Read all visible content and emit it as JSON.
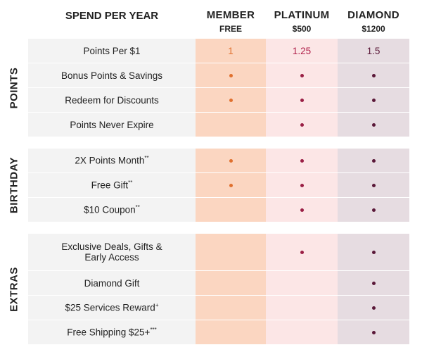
{
  "header": {
    "title": "SPEND PER YEAR",
    "tiers": [
      {
        "name": "MEMBER",
        "price": "FREE"
      },
      {
        "name": "PLATINUM",
        "price": "$500"
      },
      {
        "name": "DIAMOND",
        "price": "$1200"
      }
    ]
  },
  "sections": [
    {
      "title": "POINTS",
      "rows": [
        {
          "label": "Points Per $1",
          "cells": [
            1,
            1.25,
            1.5
          ]
        },
        {
          "label": "Bonus Points & Savings",
          "cells": [
            true,
            true,
            true
          ]
        },
        {
          "label": "Redeem for Discounts",
          "cells": [
            true,
            true,
            true
          ]
        },
        {
          "label": "Points Never Expire",
          "cells": [
            false,
            true,
            true
          ]
        }
      ]
    },
    {
      "title": "BIRTHDAY",
      "rows": [
        {
          "label": "2X Points Month",
          "note": "**",
          "cells": [
            true,
            true,
            true
          ]
        },
        {
          "label": "Free Gift",
          "note": "**",
          "cells": [
            true,
            true,
            true
          ]
        },
        {
          "label": "$10 Coupon",
          "note": "**",
          "cells": [
            false,
            true,
            true
          ]
        }
      ]
    },
    {
      "title": "EXTRAS",
      "rows": [
        {
          "label": "Exclusive Deals, Gifts & Early Access",
          "cells": [
            false,
            true,
            true
          ]
        },
        {
          "label": "Diamond Gift",
          "cells": [
            false,
            false,
            true
          ]
        },
        {
          "label": "$25 Services Reward",
          "note": "+",
          "cells": [
            false,
            false,
            true
          ]
        },
        {
          "label": "Free Shipping $25+",
          "note": "***",
          "cells": [
            false,
            false,
            true
          ]
        }
      ]
    }
  ]
}
